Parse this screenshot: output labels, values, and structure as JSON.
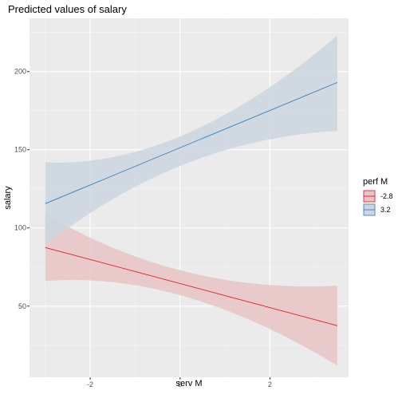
{
  "chart_data": {
    "type": "line",
    "title": "Predicted values of salary",
    "xlabel": "serv M",
    "ylabel": "salary",
    "xlim": [
      -3.35,
      3.75
    ],
    "ylim": [
      4.5,
      234
    ],
    "x_ticks": [
      -2,
      0,
      2
    ],
    "y_ticks": [
      50,
      100,
      150,
      200
    ],
    "grid": true,
    "legend": {
      "title": "perf M",
      "position": "right"
    },
    "series": [
      {
        "name": "-2.8",
        "color": "#e41a1c",
        "fill": "#e8c4c6",
        "x": [
          -3,
          3.5
        ],
        "y": [
          87.5,
          37.5
        ],
        "lower": [
          66,
          12
        ],
        "upper": [
          109,
          63
        ],
        "lower_mid": 56,
        "upper_mid": 72
      },
      {
        "name": "3.2",
        "color": "#377eb8",
        "fill": "#cbd6e1",
        "x": [
          -3,
          3.5
        ],
        "y": [
          115.5,
          193
        ],
        "lower": [
          89,
          162
        ],
        "upper": [
          142,
          223
        ],
        "lower_mid": 141,
        "upper_mid": 160
      }
    ]
  }
}
